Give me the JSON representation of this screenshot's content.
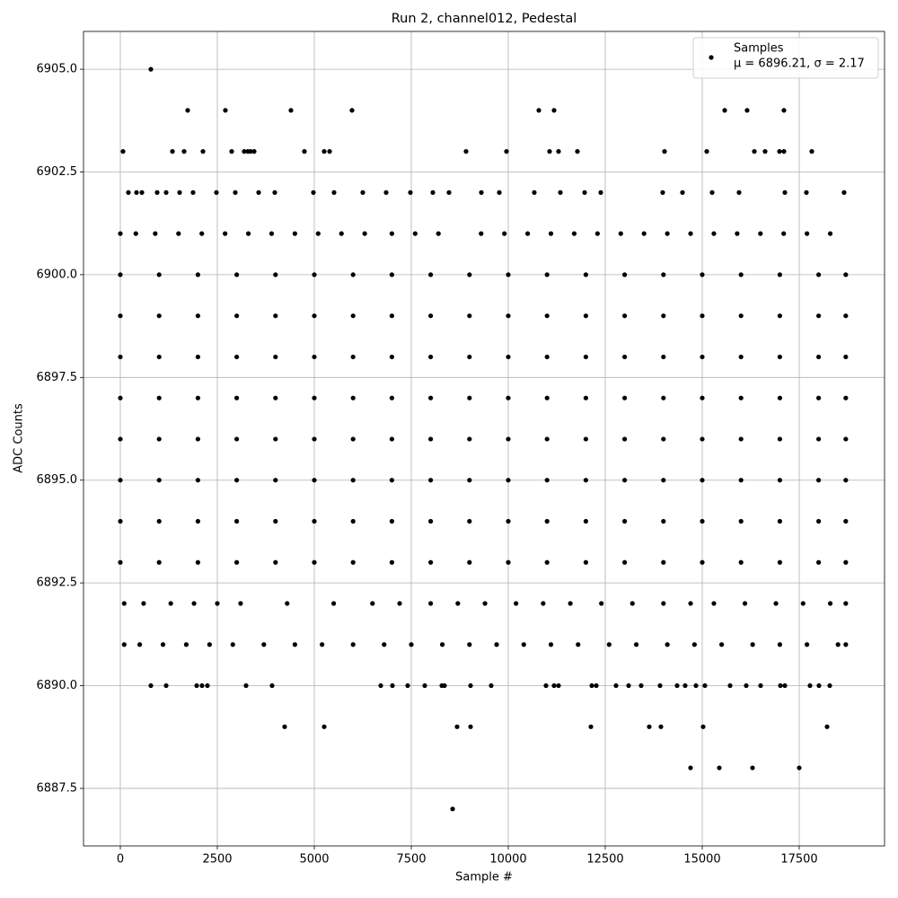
{
  "chart_data": {
    "type": "scatter",
    "title": "Run 2, channel012, Pedestal",
    "xlabel": "Sample #",
    "ylabel": "ADC Counts",
    "legend_stats": "μ = 6896.21, σ = 2.17",
    "legend": "upper right",
    "grid": true,
    "xlim": [
      -949,
      19699
    ],
    "ylim": [
      6886.1,
      6905.92
    ],
    "xticks": [
      0,
      2500,
      5000,
      7500,
      10000,
      12500,
      15000,
      17500
    ],
    "yticks": [
      6887.5,
      {
        "value": 6890,
        "label": "6890.0"
      },
      6892.5,
      {
        "value": 6895,
        "label": "6895.0"
      },
      6897.5,
      {
        "value": 6900,
        "label": "6900.0"
      },
      6902.5,
      {
        "value": 6905,
        "label": "6905.0"
      }
    ],
    "series": [
      {
        "name": "Samples",
        "color": "#000000",
        "x": [
          787,
          1736,
          2708,
          4398,
          5972,
          10787,
          11181,
          15579,
          16157,
          17106,
          69,
          1343,
          1644,
          2130,
          2870,
          3194,
          3287,
          3356,
          3449,
          4745,
          5255,
          5394,
          8912,
          9954,
          11065,
          11296,
          11782,
          14028,
          15116,
          16343,
          16620,
          16991,
          17106,
          17824,
          208,
          417,
          556,
          949,
          1181,
          1528,
          1875,
          2477,
          2963,
          3565,
          3981,
          4977,
          5509,
          6250,
          6852,
          7477,
          8056,
          8472,
          9306,
          9769,
          10671,
          11343,
          11968,
          12384,
          13981,
          14491,
          15255,
          15949,
          17130,
          17685,
          18657,
          0,
          400,
          900,
          1500,
          2100,
          2700,
          3300,
          3900,
          4500,
          5100,
          5700,
          6300,
          7000,
          7600,
          8200,
          9300,
          9900,
          10500,
          11100,
          11700,
          12300,
          12900,
          13500,
          14100,
          14700,
          15300,
          15900,
          16500,
          17100,
          17700,
          18300,
          0,
          1000,
          2000,
          3000,
          4000,
          5000,
          6000,
          7000,
          8000,
          9000,
          10000,
          11000,
          12000,
          13000,
          14000,
          15000,
          16000,
          17000,
          18000,
          18700,
          0,
          1000,
          2000,
          3000,
          4000,
          5000,
          6000,
          7000,
          8000,
          9000,
          10000,
          11000,
          12000,
          13000,
          14000,
          15000,
          16000,
          17000,
          18000,
          18700,
          0,
          1000,
          2000,
          3000,
          4000,
          5000,
          6000,
          7000,
          8000,
          9000,
          10000,
          11000,
          12000,
          13000,
          14000,
          15000,
          16000,
          17000,
          18000,
          18700,
          0,
          1000,
          2000,
          3000,
          4000,
          5000,
          6000,
          7000,
          8000,
          9000,
          10000,
          11000,
          12000,
          13000,
          14000,
          15000,
          16000,
          17000,
          18000,
          18700,
          0,
          1000,
          2000,
          3000,
          4000,
          5000,
          6000,
          7000,
          8000,
          9000,
          10000,
          11000,
          12000,
          13000,
          14000,
          15000,
          16000,
          17000,
          18000,
          18700,
          0,
          1000,
          2000,
          3000,
          4000,
          5000,
          6000,
          7000,
          8000,
          9000,
          10000,
          11000,
          12000,
          13000,
          14000,
          15000,
          16000,
          17000,
          18000,
          18700,
          0,
          1000,
          2000,
          3000,
          4000,
          5000,
          6000,
          7000,
          8000,
          9000,
          10000,
          11000,
          12000,
          13000,
          14000,
          15000,
          16000,
          17000,
          18000,
          18700,
          0,
          1000,
          2000,
          3000,
          4000,
          5000,
          6000,
          7000,
          8000,
          9000,
          10000,
          11000,
          12000,
          13000,
          14000,
          15000,
          16000,
          17000,
          18000,
          18700,
          100,
          600,
          1300,
          1900,
          2500,
          3100,
          4300,
          5500,
          6500,
          7200,
          8000,
          8700,
          9400,
          10200,
          10900,
          11600,
          12400,
          13200,
          14000,
          14700,
          15300,
          16100,
          16900,
          17600,
          18300,
          18700,
          100,
          500,
          1100,
          1700,
          2300,
          2900,
          3700,
          4500,
          5200,
          6000,
          6800,
          7500,
          8300,
          9000,
          9700,
          10400,
          11100,
          11800,
          12600,
          13300,
          14100,
          14800,
          15500,
          16300,
          17000,
          17700,
          18500,
          18700,
          787,
          1181,
          1968,
          2106,
          2245,
          3241,
          3912,
          6713,
          7014,
          7407,
          7847,
          8287,
          8356,
          9028,
          9560,
          10972,
          11181,
          11296,
          12153,
          12269,
          12778,
          13102,
          13426,
          13912,
          14352,
          14560,
          14838,
          15069,
          15718,
          16134,
          16505,
          17014,
          17130,
          17778,
          18009,
          18287,
          4236,
          5255,
          8681,
          9028,
          12130,
          13634,
          13935,
          15023,
          18218,
          14699,
          15440,
          16296,
          17500,
          8565
        ],
        "values": [
          6905,
          6904,
          6904,
          6904,
          6904,
          6904,
          6904,
          6904,
          6904,
          6904,
          6903,
          6903,
          6903,
          6903,
          6903,
          6903,
          6903,
          6903,
          6903,
          6903,
          6903,
          6903,
          6903,
          6903,
          6903,
          6903,
          6903,
          6903,
          6903,
          6903,
          6903,
          6903,
          6903,
          6903,
          6902,
          6902,
          6902,
          6902,
          6902,
          6902,
          6902,
          6902,
          6902,
          6902,
          6902,
          6902,
          6902,
          6902,
          6902,
          6902,
          6902,
          6902,
          6902,
          6902,
          6902,
          6902,
          6902,
          6902,
          6902,
          6902,
          6902,
          6902,
          6902,
          6902,
          6902,
          6901,
          6901,
          6901,
          6901,
          6901,
          6901,
          6901,
          6901,
          6901,
          6901,
          6901,
          6901,
          6901,
          6901,
          6901,
          6901,
          6901,
          6901,
          6901,
          6901,
          6901,
          6901,
          6901,
          6901,
          6901,
          6901,
          6901,
          6901,
          6901,
          6901,
          6901,
          6900,
          6900,
          6900,
          6900,
          6900,
          6900,
          6900,
          6900,
          6900,
          6900,
          6900,
          6900,
          6900,
          6900,
          6900,
          6900,
          6900,
          6900,
          6900,
          6900,
          6899,
          6899,
          6899,
          6899,
          6899,
          6899,
          6899,
          6899,
          6899,
          6899,
          6899,
          6899,
          6899,
          6899,
          6899,
          6899,
          6899,
          6899,
          6899,
          6899,
          6898,
          6898,
          6898,
          6898,
          6898,
          6898,
          6898,
          6898,
          6898,
          6898,
          6898,
          6898,
          6898,
          6898,
          6898,
          6898,
          6898,
          6898,
          6898,
          6898,
          6897,
          6897,
          6897,
          6897,
          6897,
          6897,
          6897,
          6897,
          6897,
          6897,
          6897,
          6897,
          6897,
          6897,
          6897,
          6897,
          6897,
          6897,
          6897,
          6897,
          6896,
          6896,
          6896,
          6896,
          6896,
          6896,
          6896,
          6896,
          6896,
          6896,
          6896,
          6896,
          6896,
          6896,
          6896,
          6896,
          6896,
          6896,
          6896,
          6896,
          6895,
          6895,
          6895,
          6895,
          6895,
          6895,
          6895,
          6895,
          6895,
          6895,
          6895,
          6895,
          6895,
          6895,
          6895,
          6895,
          6895,
          6895,
          6895,
          6895,
          6894,
          6894,
          6894,
          6894,
          6894,
          6894,
          6894,
          6894,
          6894,
          6894,
          6894,
          6894,
          6894,
          6894,
          6894,
          6894,
          6894,
          6894,
          6894,
          6894,
          6893,
          6893,
          6893,
          6893,
          6893,
          6893,
          6893,
          6893,
          6893,
          6893,
          6893,
          6893,
          6893,
          6893,
          6893,
          6893,
          6893,
          6893,
          6893,
          6893,
          6892,
          6892,
          6892,
          6892,
          6892,
          6892,
          6892,
          6892,
          6892,
          6892,
          6892,
          6892,
          6892,
          6892,
          6892,
          6892,
          6892,
          6892,
          6892,
          6892,
          6892,
          6892,
          6892,
          6892,
          6892,
          6892,
          6891,
          6891,
          6891,
          6891,
          6891,
          6891,
          6891,
          6891,
          6891,
          6891,
          6891,
          6891,
          6891,
          6891,
          6891,
          6891,
          6891,
          6891,
          6891,
          6891,
          6891,
          6891,
          6891,
          6891,
          6891,
          6891,
          6891,
          6891,
          6890,
          6890,
          6890,
          6890,
          6890,
          6890,
          6890,
          6890,
          6890,
          6890,
          6890,
          6890,
          6890,
          6890,
          6890,
          6890,
          6890,
          6890,
          6890,
          6890,
          6890,
          6890,
          6890,
          6890,
          6890,
          6890,
          6890,
          6890,
          6890,
          6890,
          6890,
          6890,
          6890,
          6890,
          6890,
          6890,
          6889,
          6889,
          6889,
          6889,
          6889,
          6889,
          6889,
          6889,
          6889,
          6888,
          6888,
          6888,
          6888,
          6887
        ]
      }
    ]
  }
}
